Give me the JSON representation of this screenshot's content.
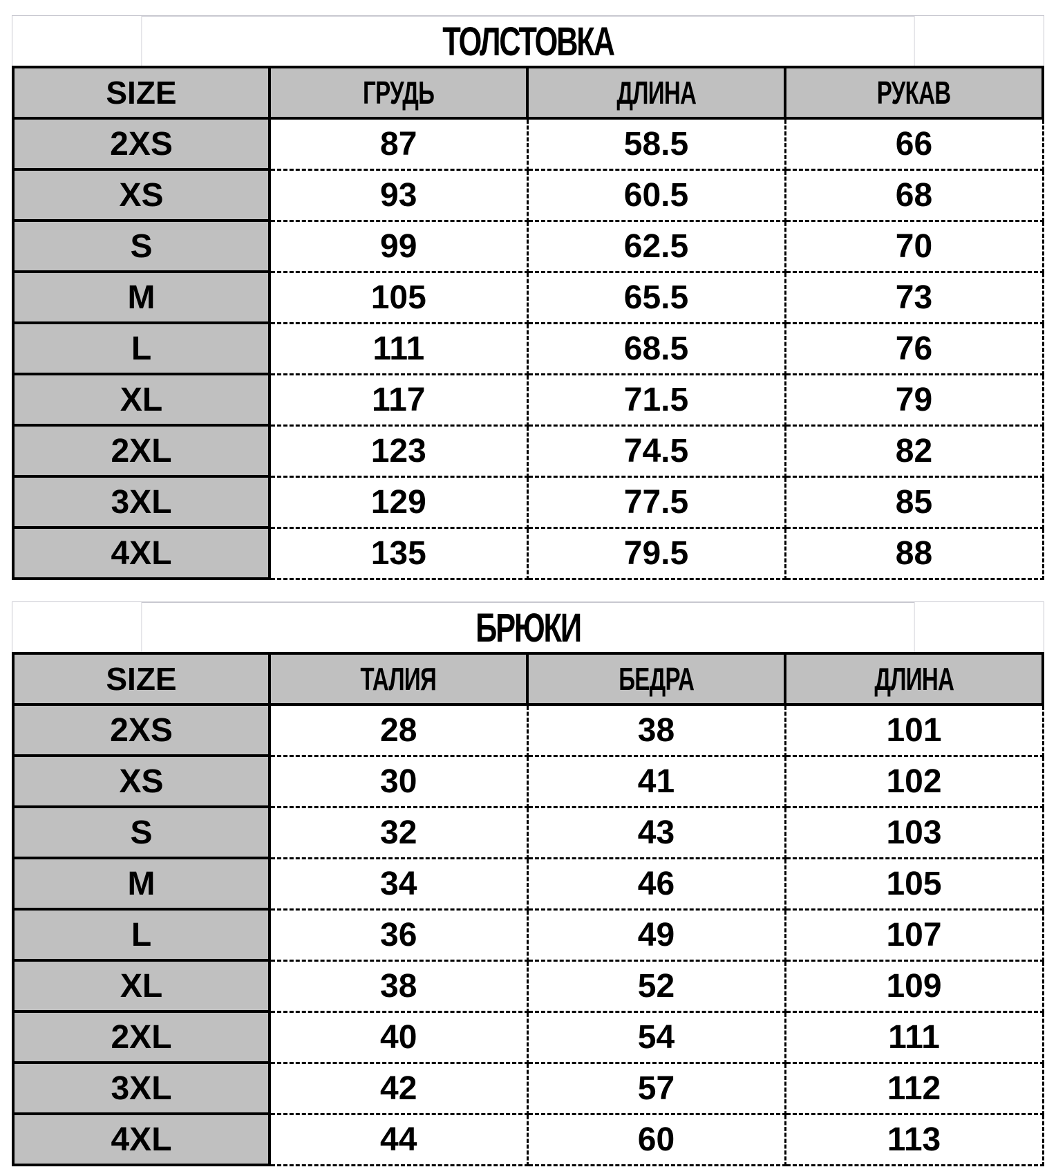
{
  "tables": [
    {
      "title": "ТОЛСТОВКА",
      "headers": [
        "SIZE",
        "ГРУДЬ",
        "ДЛИНА",
        "РУКАВ"
      ],
      "rows": [
        [
          "2XS",
          "87",
          "58.5",
          "66"
        ],
        [
          "XS",
          "93",
          "60.5",
          "68"
        ],
        [
          "S",
          "99",
          "62.5",
          "70"
        ],
        [
          "M",
          "105",
          "65.5",
          "73"
        ],
        [
          "L",
          "111",
          "68.5",
          "76"
        ],
        [
          "XL",
          "117",
          "71.5",
          "79"
        ],
        [
          "2XL",
          "123",
          "74.5",
          "82"
        ],
        [
          "3XL",
          "129",
          "77.5",
          "85"
        ],
        [
          "4XL",
          "135",
          "79.5",
          "88"
        ]
      ]
    },
    {
      "title": "БРЮКИ",
      "headers": [
        "SIZE",
        "ТАЛИЯ",
        "БЕДРА",
        "ДЛИНА"
      ],
      "rows": [
        [
          "2XS",
          "28",
          "38",
          "101"
        ],
        [
          "XS",
          "30",
          "41",
          "102"
        ],
        [
          "S",
          "32",
          "43",
          "103"
        ],
        [
          "M",
          "34",
          "46",
          "105"
        ],
        [
          "L",
          "36",
          "49",
          "107"
        ],
        [
          "XL",
          "38",
          "52",
          "109"
        ],
        [
          "2XL",
          "40",
          "54",
          "111"
        ],
        [
          "3XL",
          "42",
          "57",
          "112"
        ],
        [
          "4XL",
          "44",
          "60",
          "113"
        ]
      ]
    }
  ]
}
